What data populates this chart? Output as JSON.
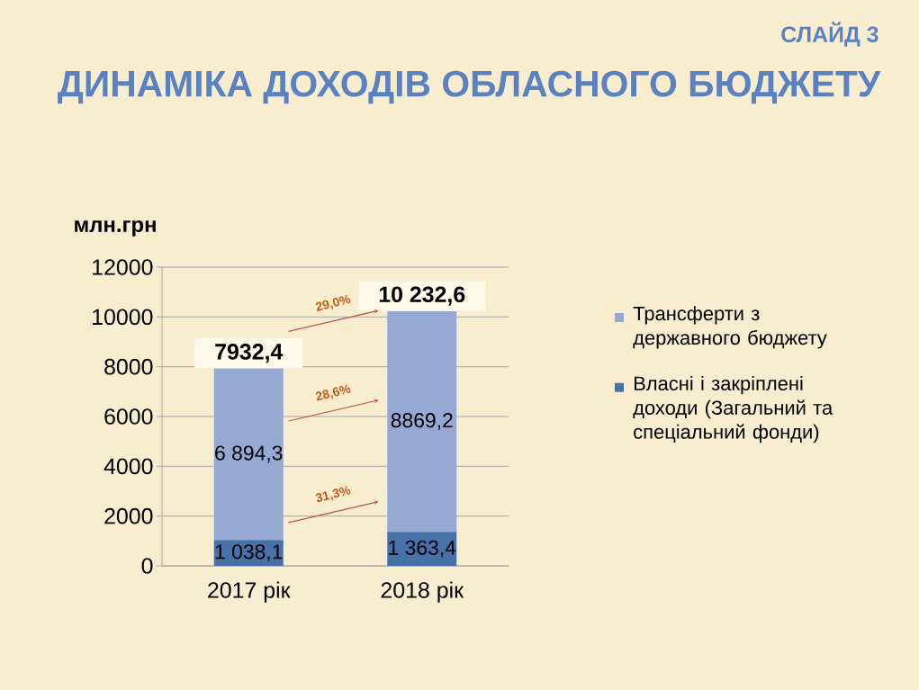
{
  "chart_data": {
    "type": "bar",
    "stacked": true,
    "title": "ДИНАМІКА ДОХОДІВ ОБЛАСНОГО БЮДЖЕТУ",
    "ylabel": "млн.грн",
    "categories": [
      "2017 рік",
      "2018 рік"
    ],
    "series": [
      {
        "name": "Власні і закріплені доходи (Загальний та спеціальний фонди)",
        "color": "#4671a9",
        "values": [
          1038.1,
          1363.4
        ],
        "value_labels": [
          "1 038,1",
          "1 363,4"
        ]
      },
      {
        "name": "Трансферти з державного бюджету",
        "color": "#95a9d4",
        "values": [
          6894.3,
          8869.2
        ],
        "value_labels": [
          "6 894,3",
          "8869,2"
        ]
      }
    ],
    "totals": [
      "7932,4",
      "10 232,6"
    ],
    "ylim": [
      0,
      12000
    ],
    "yticks": [
      0,
      2000,
      4000,
      6000,
      8000,
      10000,
      12000
    ],
    "grid": "y",
    "legend": "right",
    "annotations": [
      "СЛАЙД 3",
      "29,0%",
      "28,6%",
      "31,3%"
    ]
  }
}
